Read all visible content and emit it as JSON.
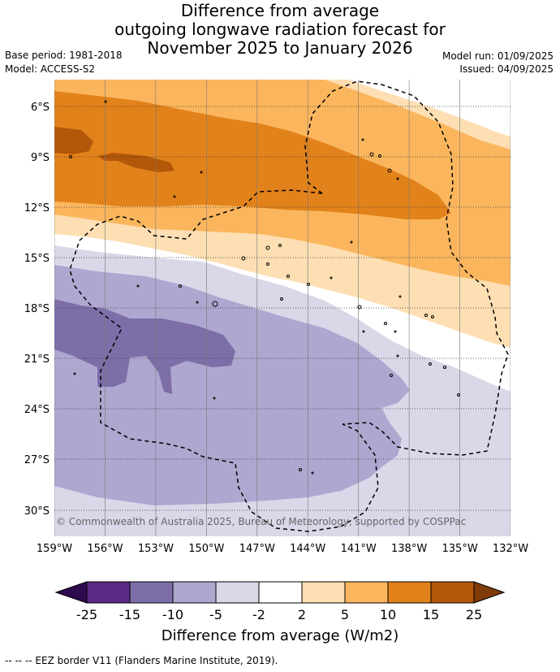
{
  "title_lines": [
    "Difference from average",
    "outgoing longwave radiation forecast for",
    "November 2025 to January 2026"
  ],
  "meta": {
    "base_period": "Base period: 1981-2018",
    "model": "Model: ACCESS-S2",
    "model_run": "Model run: 01/09/2025",
    "issued": "Issued: 04/09/2025"
  },
  "map": {
    "lat_labels": [
      "6°S",
      "9°S",
      "12°S",
      "15°S",
      "18°S",
      "21°S",
      "24°S",
      "27°S",
      "30°S"
    ],
    "lon_labels": [
      "159°W",
      "156°W",
      "153°W",
      "150°W",
      "147°W",
      "144°W",
      "141°W",
      "138°W",
      "135°W",
      "132°W"
    ],
    "copyright": "© Commonwealth of Australia 2025, Bureau of Meteorology, supported by COSPPac"
  },
  "colorbar": {
    "ticks": [
      "-25",
      "-15",
      "-10",
      "-5",
      "-2",
      "2",
      "5",
      "10",
      "15",
      "25"
    ],
    "colors": {
      "below_min": "#2d0a4e",
      "c1": "#5a2a85",
      "c2": "#7d6ea8",
      "c3": "#aea7cf",
      "c4": "#d8d8e9",
      "c5": "#ffffff",
      "c6": "#fddfb3",
      "c7": "#fbb65d",
      "c8": "#e2821a",
      "c9": "#b35709",
      "above_max": "#7f3b08"
    },
    "label": "Difference from average (W/m2)"
  },
  "footer": "--  --  -- EEZ border V11 (Flanders Marine Institute, 2019)."
}
